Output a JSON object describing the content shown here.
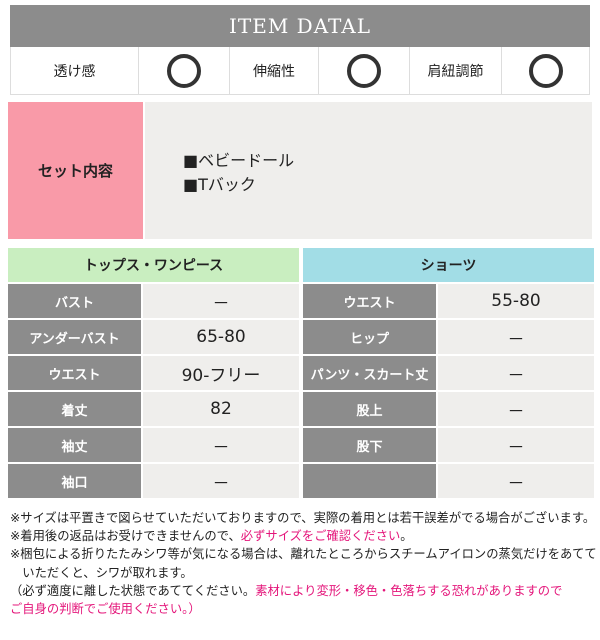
{
  "header": {
    "title": "ITEM DATAL"
  },
  "attributes": [
    {
      "label": "透け感",
      "value": "〇"
    },
    {
      "label": "伸縮性",
      "value": "〇"
    },
    {
      "label": "肩紐調節",
      "value": "〇"
    }
  ],
  "set": {
    "label": "セット内容",
    "items": [
      "■ベビードール",
      "■Tバック"
    ]
  },
  "tops": {
    "title": "トップス・ワンピース",
    "color": "#c9eec0",
    "rows": [
      {
        "label": "バスト",
        "value": "－"
      },
      {
        "label": "アンダーバスト",
        "value": "65-80"
      },
      {
        "label": "ウエスト",
        "value": "90-フリー"
      },
      {
        "label": "着丈",
        "value": "82"
      },
      {
        "label": "袖丈",
        "value": "－"
      },
      {
        "label": "袖口",
        "value": "－"
      }
    ]
  },
  "shorts": {
    "title": "ショーツ",
    "color": "#a2dde6",
    "rows": [
      {
        "label": "ウエスト",
        "value": "55-80"
      },
      {
        "label": "ヒップ",
        "value": "－"
      },
      {
        "label": "パンツ・スカート丈",
        "value": "－"
      },
      {
        "label": "股上",
        "value": "－"
      },
      {
        "label": "股下",
        "value": "－"
      },
      {
        "label": "",
        "value": "－"
      }
    ]
  },
  "notes": {
    "n1": "※サイズは平置きで図らせていただいておりますので、実際の着用とは若干誤差がでる場合がございます。",
    "n2a": "※着用後の返品はお受けできませんので、",
    "n2b": "必ずサイズをご確認ください",
    "n2c": "。",
    "n3a": "※梱包による折りたたみシワ等が気になる場合は、離れたところからスチームアイロンの蒸気だけをあてて",
    "n3b": "　いただくと、シワが取れます。",
    "n4a": "（必ず適度に離した状態であててください。",
    "n4b": "素材により変形・移色・色落ちする恐れがありますので",
    "n5a": "ご自身の判断でご使用ください。",
    "n5b": "）"
  }
}
